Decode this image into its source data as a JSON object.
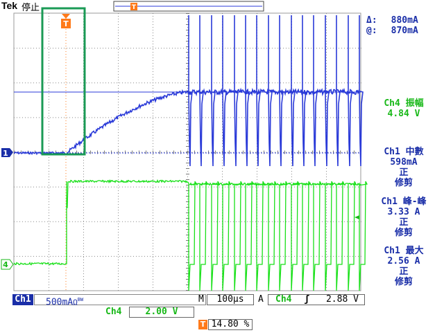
{
  "header": {
    "brand": "Tek",
    "run_state": "停止",
    "cursor_delta_label": "Δ:",
    "cursor_delta_value": "880mA",
    "cursor_at_label": "@:",
    "cursor_at_value": "870mA",
    "trigger_marker": "T"
  },
  "channel_markers": {
    "ch1": "1",
    "ch4": "4"
  },
  "measurements": [
    {
      "line1": "Ch4 振幅",
      "line2": "4.84 V",
      "lines": [],
      "color": "#18b818"
    },
    {
      "line1": "Ch1 中數",
      "line2": "598mA",
      "lines": [
        "正",
        "修剪"
      ],
      "color": "#1a2ea8"
    },
    {
      "line1": "Ch1 峰-峰",
      "line2": "3.33 A",
      "lines": [
        "正",
        "修剪"
      ],
      "color": "#1a2ea8"
    },
    {
      "line1": "Ch1 最大",
      "line2": "2.56 A",
      "lines": [
        "正",
        "修剪"
      ],
      "color": "#1a2ea8"
    }
  ],
  "status_bar": {
    "ch1_label": "Ch1",
    "ch1_scale": "500mA",
    "ch1_suffix": "Ω",
    "ch1_bw": "BW",
    "timebase_label": "M",
    "timebase_value": "100µs",
    "trigger_mode": "A",
    "trigger_source": "Ch4",
    "trigger_slope_icon": "rising-edge-icon",
    "trigger_level": "2.88 V",
    "ch4_label": "Ch4",
    "ch4_scale": "2.00 V",
    "trigger_position_marker": "T",
    "trigger_position": "14.80 %"
  },
  "colors": {
    "ch1": "#2a3ad8",
    "ch4": "#18e018",
    "graticule": "#888888",
    "highlight": "#1a9a55",
    "trigger": "#ff7a1a"
  }
}
